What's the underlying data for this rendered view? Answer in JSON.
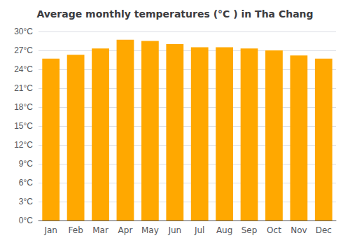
{
  "chart_data": {
    "type": "bar",
    "title": "Average monthly temperatures (°C ) in Tha Chang",
    "categories": [
      "Jan",
      "Feb",
      "Mar",
      "Apr",
      "May",
      "Jun",
      "Jul",
      "Aug",
      "Sep",
      "Oct",
      "Nov",
      "Dec"
    ],
    "values": [
      25.7,
      26.3,
      27.3,
      28.7,
      28.5,
      28.0,
      27.5,
      27.5,
      27.3,
      27.0,
      26.2,
      25.7
    ],
    "color": "#FFA800",
    "ylim": [
      0,
      30
    ],
    "yticks": [
      {
        "value": 0,
        "label": "0°C"
      },
      {
        "value": 3,
        "label": "3°C"
      },
      {
        "value": 6,
        "label": "6°C"
      },
      {
        "value": 9,
        "label": "9°C"
      },
      {
        "value": 12,
        "label": "12°C"
      },
      {
        "value": 15,
        "label": "15°C"
      },
      {
        "value": 18,
        "label": "18°C"
      },
      {
        "value": 21,
        "label": "21°C"
      },
      {
        "value": 24,
        "label": "24°C"
      },
      {
        "value": 27,
        "label": "27°C"
      },
      {
        "value": 30,
        "label": "30°C"
      }
    ],
    "grid": true
  }
}
